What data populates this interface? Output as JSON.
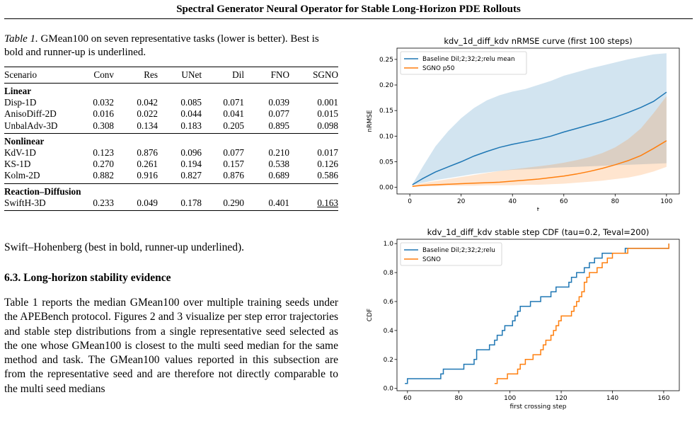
{
  "header": {
    "title": "Spectral Generator Neural Operator for Stable Long-Horizon PDE Rollouts"
  },
  "table": {
    "caption_label": "Table 1.",
    "caption_text": " GMean100 on seven representative tasks (lower is better). Best is bold and runner-up is underlined.",
    "columns": [
      "Scenario",
      "Conv",
      "Res",
      "UNet",
      "Dil",
      "FNO",
      "SGNO"
    ],
    "groups": [
      {
        "name": "Linear",
        "rows": [
          {
            "scenario": "Disp-1D",
            "values": [
              "0.032",
              "0.042",
              "0.085",
              "0.071",
              "0.039",
              "0.001"
            ],
            "best": 5,
            "second": -1
          },
          {
            "scenario": "AnisoDiff-2D",
            "values": [
              "0.016",
              "0.022",
              "0.044",
              "0.041",
              "0.077",
              "0.015"
            ],
            "best": 5,
            "second": -1
          },
          {
            "scenario": "UnbalAdv-3D",
            "values": [
              "0.308",
              "0.134",
              "0.183",
              "0.205",
              "0.895",
              "0.098"
            ],
            "best": 5,
            "second": -1
          }
        ]
      },
      {
        "name": "Nonlinear",
        "rows": [
          {
            "scenario": "KdV-1D",
            "values": [
              "0.123",
              "0.876",
              "0.096",
              "0.077",
              "0.210",
              "0.017"
            ],
            "best": 5,
            "second": -1
          },
          {
            "scenario": "KS-1D",
            "values": [
              "0.270",
              "0.261",
              "0.194",
              "0.157",
              "0.538",
              "0.126"
            ],
            "best": 5,
            "second": -1
          },
          {
            "scenario": "Kolm-2D",
            "values": [
              "0.882",
              "0.916",
              "0.827",
              "0.876",
              "0.689",
              "0.586"
            ],
            "best": 5,
            "second": -1
          }
        ]
      },
      {
        "name": "Reaction–Diffusion",
        "rows": [
          {
            "scenario": "SwiftH-3D",
            "values": [
              "0.233",
              "0.049",
              "0.178",
              "0.290",
              "0.401",
              "0.163"
            ],
            "best": 1,
            "second": 5
          }
        ]
      }
    ]
  },
  "text": {
    "swift_line": "Swift–Hohenberg (best in bold, runner-up underlined).",
    "section_heading": "6.3. Long-horizon stability evidence",
    "paragraph": "Table 1 reports the median GMean100 over multiple training seeds under the APEBench protocol. Figures 2 and 3 visualize per step error trajectories and stable step distributions from a single representative seed selected as the one whose GMean100 is closest to the multi seed median for the same method and task. The GMean100 values reported in this subsection are from the representative seed and are therefore not directly comparable to the multi seed medians"
  },
  "colors": {
    "baseline": "#1f77b4",
    "sgno": "#ff7f0e"
  },
  "chart_data": [
    {
      "type": "line",
      "title": "kdv_1d_diff_kdv nRMSE curve (first 100 steps)",
      "xlabel": "t",
      "ylabel": "nRMSE",
      "xlim": [
        -5,
        105
      ],
      "ylim": [
        -0.013,
        0.272
      ],
      "xticks": [
        0,
        20,
        40,
        60,
        80,
        100
      ],
      "yticks": [
        0.0,
        0.05,
        0.1,
        0.15,
        0.2,
        0.25
      ],
      "ytick_labels": [
        "0.00",
        "0.05",
        "0.10",
        "0.15",
        "0.20",
        "0.25"
      ],
      "legend": "top-left",
      "series": [
        {
          "name": "Baseline Dil;2;32;2;relu mean",
          "color": "#1f77b4",
          "x": [
            1,
            5,
            10,
            15,
            20,
            25,
            30,
            35,
            40,
            45,
            50,
            55,
            60,
            65,
            70,
            75,
            80,
            85,
            90,
            95,
            100
          ],
          "y": [
            0.005,
            0.017,
            0.03,
            0.04,
            0.05,
            0.061,
            0.07,
            0.078,
            0.084,
            0.089,
            0.094,
            0.1,
            0.108,
            0.115,
            0.122,
            0.129,
            0.137,
            0.146,
            0.156,
            0.168,
            0.186
          ],
          "band_low": [
            0.004,
            0.009,
            0.014,
            0.018,
            0.022,
            0.026,
            0.029,
            0.032,
            0.034,
            0.035,
            0.036,
            0.038,
            0.039,
            0.04,
            0.041,
            0.042,
            0.043,
            0.044,
            0.045,
            0.046,
            0.047
          ],
          "band_high": [
            0.006,
            0.04,
            0.08,
            0.11,
            0.135,
            0.155,
            0.17,
            0.18,
            0.187,
            0.192,
            0.2,
            0.208,
            0.218,
            0.225,
            0.232,
            0.238,
            0.244,
            0.25,
            0.255,
            0.26,
            0.262
          ]
        },
        {
          "name": "SGNO p50",
          "color": "#ff7f0e",
          "x": [
            1,
            5,
            10,
            15,
            20,
            25,
            30,
            35,
            40,
            45,
            50,
            55,
            60,
            65,
            70,
            75,
            80,
            85,
            90,
            95,
            100
          ],
          "y": [
            0.002,
            0.004,
            0.005,
            0.006,
            0.007,
            0.008,
            0.009,
            0.01,
            0.012,
            0.014,
            0.016,
            0.019,
            0.022,
            0.026,
            0.031,
            0.037,
            0.044,
            0.052,
            0.062,
            0.076,
            0.091
          ],
          "band_low": [
            0.001,
            0.002,
            0.002,
            0.003,
            0.003,
            0.003,
            0.004,
            0.004,
            0.004,
            0.005,
            0.005,
            0.006,
            0.007,
            0.009,
            0.011,
            0.013,
            0.016,
            0.019,
            0.024,
            0.031,
            0.04
          ],
          "band_high": [
            0.003,
            0.008,
            0.012,
            0.016,
            0.02,
            0.024,
            0.028,
            0.032,
            0.035,
            0.038,
            0.041,
            0.044,
            0.048,
            0.053,
            0.059,
            0.067,
            0.078,
            0.094,
            0.115,
            0.145,
            0.178
          ]
        }
      ]
    },
    {
      "type": "line",
      "title": "kdv_1d_diff_kdv stable step CDF (tau=0.2, Teval=200)",
      "xlabel": "first crossing step",
      "ylabel": "CDF",
      "xlim": [
        55.9,
        166.1
      ],
      "ylim": [
        -0.016,
        1.03
      ],
      "xticks": [
        60,
        80,
        100,
        120,
        140,
        160
      ],
      "yticks": [
        0.0,
        0.2,
        0.4,
        0.6,
        0.8,
        1.0
      ],
      "ytick_labels": [
        "0.0",
        "0.2",
        "0.4",
        "0.6",
        "0.8",
        "1.0"
      ],
      "legend": "top-left",
      "series": [
        {
          "name": "Baseline Dil;2;32;2;relu",
          "color": "#1f77b4",
          "x": [
            59,
            60,
            73,
            74,
            82,
            86,
            87,
            92,
            94,
            95,
            97,
            98,
            101,
            102,
            103,
            104,
            108,
            112,
            116,
            118,
            119,
            123,
            124,
            126,
            129,
            131,
            133,
            134,
            136,
            138,
            145,
            148,
            150,
            153,
            162
          ],
          "y": [
            0.034,
            0.067,
            0.1,
            0.133,
            0.167,
            0.2,
            0.267,
            0.3,
            0.333,
            0.367,
            0.4,
            0.433,
            0.467,
            0.5,
            0.533,
            0.567,
            0.6,
            0.633,
            0.667,
            0.7,
            0.7,
            0.733,
            0.767,
            0.8,
            0.833,
            0.867,
            0.9,
            0.9,
            0.933,
            0.933,
            0.967,
            0.967,
            0.967,
            0.967,
            1.0
          ]
        },
        {
          "name": "SGNO",
          "color": "#ff7f0e",
          "x": [
            94,
            95,
            96,
            99,
            102,
            103,
            104,
            106,
            109,
            112,
            113,
            114,
            116,
            117,
            118,
            119,
            120,
            124,
            125,
            126,
            127,
            128,
            129,
            130,
            131,
            134,
            136,
            138,
            140,
            143,
            146,
            148,
            150,
            155,
            162
          ],
          "y": [
            0.034,
            0.067,
            0.067,
            0.1,
            0.1,
            0.133,
            0.167,
            0.2,
            0.233,
            0.267,
            0.3,
            0.333,
            0.367,
            0.4,
            0.433,
            0.467,
            0.5,
            0.533,
            0.567,
            0.6,
            0.633,
            0.667,
            0.733,
            0.767,
            0.8,
            0.833,
            0.867,
            0.9,
            0.933,
            0.933,
            0.967,
            0.967,
            0.967,
            0.967,
            1.0
          ]
        }
      ]
    }
  ]
}
